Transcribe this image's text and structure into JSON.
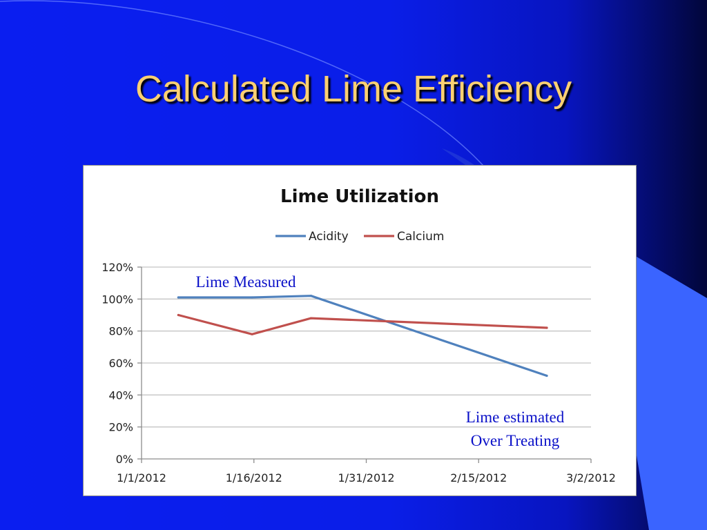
{
  "slide": {
    "title": "Calculated Lime Efficiency"
  },
  "colors": {
    "title": "#fbd072",
    "acidity": "#4f81bd",
    "calcium": "#c0504d",
    "annotation": "#0a10c8",
    "slide_accent": "#3a64ff"
  },
  "chart_data": {
    "type": "line",
    "title": "Lime Utilization",
    "xlabel": "",
    "ylabel": "",
    "x_ticks": [
      "1/1/2012",
      "1/16/2012",
      "1/31/2012",
      "2/15/2012",
      "3/2/2012"
    ],
    "xlim": [
      "2012-01-01",
      "2012-03-02"
    ],
    "y_ticks": [
      "0%",
      "20%",
      "40%",
      "60%",
      "80%",
      "100%",
      "120%"
    ],
    "ylim": [
      0,
      120
    ],
    "y_unit": "%",
    "grid": true,
    "legend": "top",
    "series": [
      {
        "name": "Acidity",
        "color": "#4f81bd",
        "points": [
          {
            "x": "2012-01-06",
            "y": 101
          },
          {
            "x": "2012-01-16",
            "y": 101
          },
          {
            "x": "2012-01-24",
            "y": 102
          },
          {
            "x": "2012-02-25",
            "y": 52
          }
        ]
      },
      {
        "name": "Calcium",
        "color": "#c0504d",
        "points": [
          {
            "x": "2012-01-06",
            "y": 90
          },
          {
            "x": "2012-01-16",
            "y": 78
          },
          {
            "x": "2012-01-24",
            "y": 88
          },
          {
            "x": "2012-02-25",
            "y": 82
          }
        ]
      }
    ],
    "annotations": [
      "Lime Measured",
      "Lime estimated",
      "Over Treating"
    ]
  }
}
